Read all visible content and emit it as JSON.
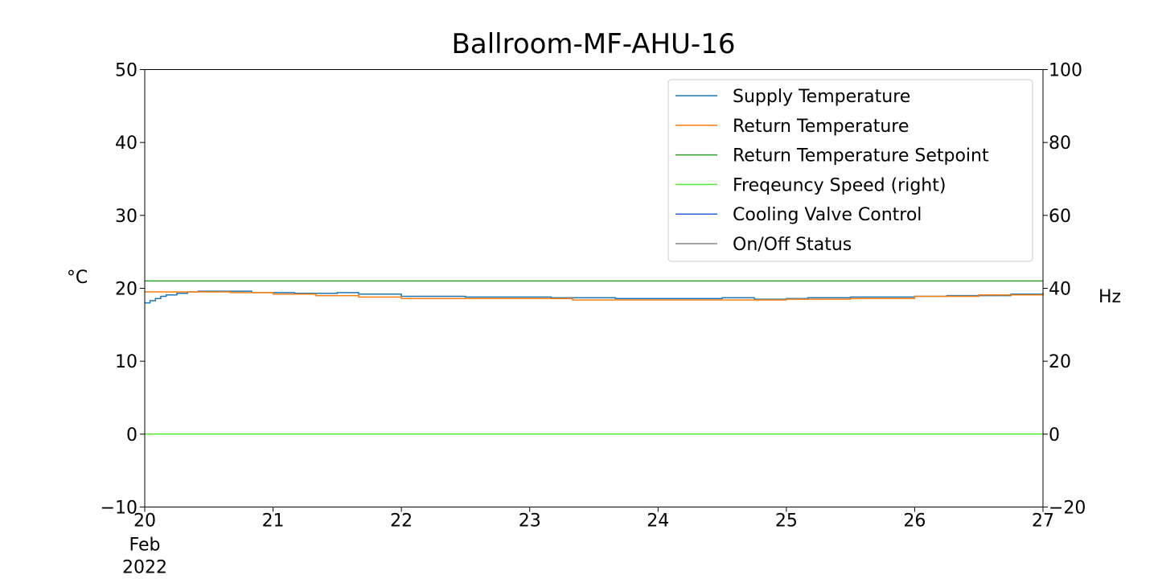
{
  "chart_data": {
    "type": "line",
    "title": "Ballroom-MF-AHU-16",
    "ylabel_left": "°C",
    "ylabel_right": "Hz",
    "xlim": [
      "2022-02-20",
      "2022-02-27"
    ],
    "ylim_left": [
      -10,
      50
    ],
    "ylim_right": [
      -20,
      100
    ],
    "yticks_left": [
      -10,
      0,
      10,
      20,
      30,
      40,
      50
    ],
    "yticks_left_labels": [
      "−10",
      "0",
      "10",
      "20",
      "30",
      "40",
      "50"
    ],
    "yticks_right": [
      -20,
      0,
      20,
      40,
      60,
      80,
      100
    ],
    "yticks_right_labels": [
      "−20",
      "0",
      "20",
      "40",
      "60",
      "80",
      "100"
    ],
    "xticks": [
      "2022-02-20",
      "2022-02-21",
      "2022-02-22",
      "2022-02-23",
      "2022-02-24",
      "2022-02-25",
      "2022-02-26",
      "2022-02-27"
    ],
    "xtick_labels": [
      "20",
      "21",
      "22",
      "23",
      "24",
      "25",
      "26",
      "27"
    ],
    "xtick_sublabels": [
      "Feb",
      "2022"
    ],
    "grid": false,
    "legend_position": "top-right",
    "series": [
      {
        "name": "Supply Temperature",
        "axis": "left",
        "color": "#1f77b4",
        "x": [
          "2022-02-20 00:00",
          "2022-02-20 01:00",
          "2022-02-20 02:00",
          "2022-02-20 03:00",
          "2022-02-20 04:00",
          "2022-02-20 06:00",
          "2022-02-20 08:00",
          "2022-02-20 10:00",
          "2022-02-20 14:00",
          "2022-02-20 20:00",
          "2022-02-21 04:00",
          "2022-02-21 12:00",
          "2022-02-21 16:00",
          "2022-02-22 00:00",
          "2022-02-22 12:00",
          "2022-02-23 04:00",
          "2022-02-23 16:00",
          "2022-02-24 12:00",
          "2022-02-24 18:00",
          "2022-02-25 00:00",
          "2022-02-25 04:00",
          "2022-02-25 12:00",
          "2022-02-26 00:00",
          "2022-02-26 06:00",
          "2022-02-26 18:00",
          "2022-02-27 00:00"
        ],
        "y": [
          18.0,
          18.3,
          18.6,
          18.9,
          19.1,
          19.3,
          19.5,
          19.6,
          19.6,
          19.4,
          19.3,
          19.4,
          19.2,
          18.9,
          18.8,
          18.7,
          18.6,
          18.7,
          18.5,
          18.6,
          18.7,
          18.8,
          18.9,
          19.0,
          19.2,
          19.3
        ]
      },
      {
        "name": "Return Temperature",
        "axis": "left",
        "color": "#ff7f0e",
        "x": [
          "2022-02-20 00:00",
          "2022-02-20 08:00",
          "2022-02-20 16:00",
          "2022-02-21 00:00",
          "2022-02-21 08:00",
          "2022-02-21 16:00",
          "2022-02-22 00:00",
          "2022-02-23 08:00",
          "2022-02-24 16:00",
          "2022-02-25 00:00",
          "2022-02-25 12:00",
          "2022-02-26 00:00",
          "2022-02-26 12:00",
          "2022-02-27 00:00"
        ],
        "y": [
          19.5,
          19.5,
          19.4,
          19.2,
          19.0,
          18.8,
          18.6,
          18.4,
          18.4,
          18.5,
          18.6,
          18.9,
          19.1,
          19.4
        ]
      },
      {
        "name": "Return Temperature Setpoint",
        "axis": "left",
        "color": "#2ca02c",
        "x": [
          "2022-02-20 00:00",
          "2022-02-27 00:00"
        ],
        "y": [
          21,
          21
        ]
      },
      {
        "name": "Freqeuncy Speed (right)",
        "axis": "right",
        "color": "#55ee33",
        "x": [
          "2022-02-20 00:00",
          "2022-02-27 00:00"
        ],
        "y": [
          0,
          0
        ]
      },
      {
        "name": "Cooling Valve Control",
        "axis": "left",
        "color": "#2a5ee8",
        "x": [],
        "y": []
      },
      {
        "name": "On/Off Status",
        "axis": "left",
        "color": "#888888",
        "x": [],
        "y": []
      }
    ]
  }
}
